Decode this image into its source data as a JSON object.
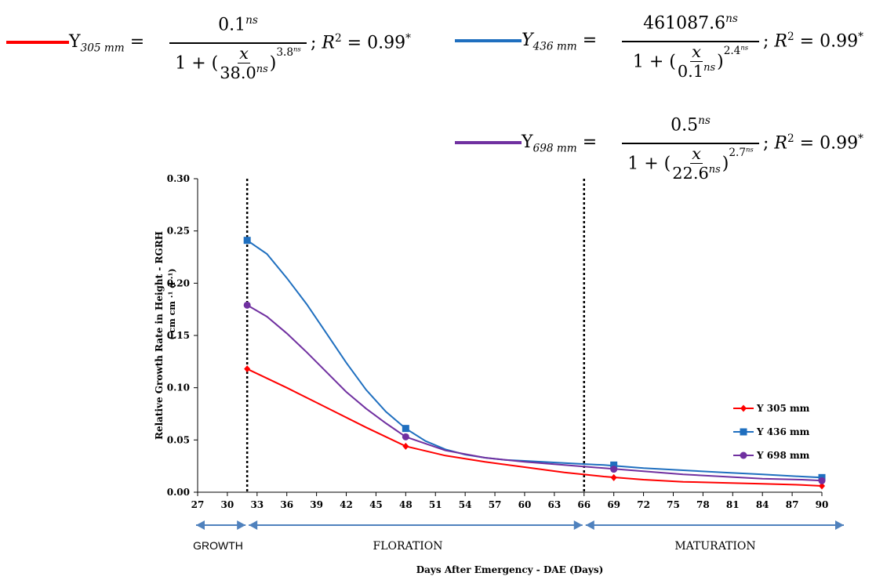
{
  "equations": [
    {
      "color": "#ff0000",
      "lhs_main": "Y",
      "lhs_sub": "305 mm",
      "numerator": "0.1",
      "num_sup": "ns",
      "den_prefix": "1 + (",
      "den_frac_num": "x",
      "den_frac_den": "38.0",
      "den_frac_den_sup": "ns",
      "den_suffix": ")",
      "den_exp": "3.8",
      "den_exp_sup": "ns",
      "r2_label": "R",
      "r2_sup": "2",
      "r2_value": " = 0.99",
      "r2_star": "*"
    },
    {
      "color": "#1f6fbf",
      "lhs_main": "Y",
      "lhs_sub": "436 mm",
      "numerator": "461087.6",
      "num_sup": "ns",
      "den_prefix": "1 + (",
      "den_frac_num": "x",
      "den_frac_den": "0.1",
      "den_frac_den_sup": "ns",
      "den_suffix": ")",
      "den_exp": "2.4",
      "den_exp_sup": "ns",
      "r2_label": "R",
      "r2_sup": "2",
      "r2_value": " = 0.99",
      "r2_star": "*"
    },
    {
      "color": "#7030a0",
      "lhs_main": "Y",
      "lhs_sub": "698 mm",
      "numerator": "0.5",
      "num_sup": "ns",
      "den_prefix": "1 + (",
      "den_frac_num": "x",
      "den_frac_den": "22.6",
      "den_frac_den_sup": "ns",
      "den_suffix": ")",
      "den_exp": "2.7",
      "den_exp_sup": "ns",
      "r2_label": "R",
      "r2_sup": "2",
      "r2_value": " = 0.99",
      "r2_star": "*"
    }
  ],
  "chart_data": {
    "type": "line",
    "title": "",
    "ylabel_line1": "Relative Growth Rate in Height - RGRH",
    "ylabel_line2": "( cm  cm ·¹  d ·¹)",
    "xlabel": "Days After Emergency - DAE (Days)",
    "xlim": [
      27,
      90
    ],
    "ylim": [
      0,
      0.3
    ],
    "x_ticks": [
      "27",
      "30",
      "33",
      "36",
      "39",
      "42",
      "45",
      "48",
      "51",
      "54",
      "57",
      "60",
      "63",
      "66",
      "69",
      "72",
      "75",
      "78",
      "81",
      "84",
      "87",
      "90"
    ],
    "y_ticks": [
      "0.00",
      "0.05",
      "0.10",
      "0.15",
      "0.20",
      "0.25",
      "0.30"
    ],
    "vertical_lines": [
      32,
      66
    ],
    "phases": [
      {
        "label": "GROWTH",
        "from": 27,
        "to": 32
      },
      {
        "label": "FLORATION",
        "from": 32,
        "to": 66
      },
      {
        "label": "MATURATION",
        "from": 66,
        "to": 90
      }
    ],
    "legend_position": "right",
    "series": [
      {
        "name": "Y 305 mm",
        "color": "#ff0000",
        "marker": "diamond",
        "points": [
          [
            32,
            0.118
          ],
          [
            48,
            0.044
          ],
          [
            69,
            0.014
          ],
          [
            90,
            0.006
          ]
        ],
        "curve": [
          [
            32,
            0.118
          ],
          [
            36,
            0.1
          ],
          [
            40,
            0.081
          ],
          [
            44,
            0.062
          ],
          [
            48,
            0.044
          ],
          [
            52,
            0.035
          ],
          [
            56,
            0.029
          ],
          [
            60,
            0.024
          ],
          [
            64,
            0.019
          ],
          [
            68,
            0.015
          ],
          [
            72,
            0.012
          ],
          [
            76,
            0.01
          ],
          [
            80,
            0.009
          ],
          [
            84,
            0.008
          ],
          [
            88,
            0.007
          ],
          [
            90,
            0.006
          ]
        ]
      },
      {
        "name": "Y 436 mm",
        "color": "#1f6fbf",
        "marker": "square",
        "points": [
          [
            32,
            0.241
          ],
          [
            48,
            0.061
          ],
          [
            69,
            0.026
          ],
          [
            90,
            0.014
          ]
        ],
        "curve": [
          [
            32,
            0.241
          ],
          [
            34,
            0.228
          ],
          [
            36,
            0.205
          ],
          [
            38,
            0.18
          ],
          [
            40,
            0.152
          ],
          [
            42,
            0.124
          ],
          [
            44,
            0.098
          ],
          [
            46,
            0.077
          ],
          [
            48,
            0.061
          ],
          [
            50,
            0.049
          ],
          [
            52,
            0.041
          ],
          [
            54,
            0.036
          ],
          [
            56,
            0.033
          ],
          [
            58,
            0.031
          ],
          [
            60,
            0.03
          ],
          [
            64,
            0.028
          ],
          [
            68,
            0.026
          ],
          [
            72,
            0.023
          ],
          [
            76,
            0.021
          ],
          [
            80,
            0.019
          ],
          [
            84,
            0.017
          ],
          [
            88,
            0.015
          ],
          [
            90,
            0.014
          ]
        ]
      },
      {
        "name": "Y 698 mm",
        "color": "#7030a0",
        "marker": "circle",
        "points": [
          [
            32,
            0.179
          ],
          [
            48,
            0.053
          ],
          [
            69,
            0.022
          ],
          [
            90,
            0.011
          ]
        ],
        "curve": [
          [
            32,
            0.179
          ],
          [
            34,
            0.168
          ],
          [
            36,
            0.152
          ],
          [
            38,
            0.134
          ],
          [
            40,
            0.115
          ],
          [
            42,
            0.096
          ],
          [
            44,
            0.08
          ],
          [
            46,
            0.066
          ],
          [
            48,
            0.053
          ],
          [
            52,
            0.04
          ],
          [
            56,
            0.033
          ],
          [
            60,
            0.029
          ],
          [
            64,
            0.026
          ],
          [
            68,
            0.023
          ],
          [
            72,
            0.02
          ],
          [
            76,
            0.017
          ],
          [
            80,
            0.015
          ],
          [
            84,
            0.013
          ],
          [
            88,
            0.012
          ],
          [
            90,
            0.011
          ]
        ]
      }
    ]
  }
}
